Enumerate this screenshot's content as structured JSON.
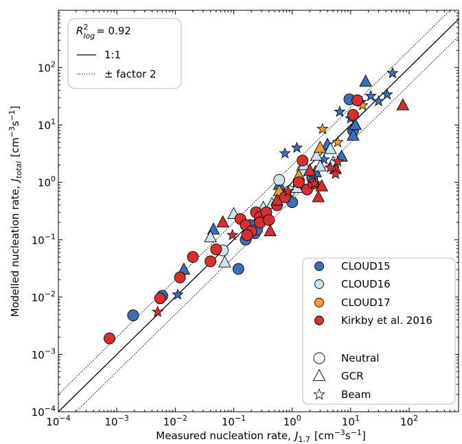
{
  "chart_data": {
    "type": "scatter",
    "xscale": "log",
    "yscale": "log",
    "xlim": [
      0.0001,
      700
    ],
    "ylim": [
      0.0001,
      1000
    ],
    "x_major_ticks": [
      {
        "value": 0.0001,
        "base": "10",
        "exp": "−4"
      },
      {
        "value": 0.001,
        "base": "10",
        "exp": "−3"
      },
      {
        "value": 0.01,
        "base": "10",
        "exp": "−2"
      },
      {
        "value": 0.1,
        "base": "10",
        "exp": "−1"
      },
      {
        "value": 1,
        "base": "10",
        "exp": "0"
      },
      {
        "value": 10,
        "base": "10",
        "exp": "1"
      },
      {
        "value": 100,
        "base": "10",
        "exp": "2"
      }
    ],
    "y_major_ticks": [
      {
        "value": 0.0001,
        "base": "10",
        "exp": "−4"
      },
      {
        "value": 0.001,
        "base": "10",
        "exp": "−3"
      },
      {
        "value": 0.01,
        "base": "10",
        "exp": "−2"
      },
      {
        "value": 0.1,
        "base": "10",
        "exp": "−1"
      },
      {
        "value": 1,
        "base": "10",
        "exp": "0"
      },
      {
        "value": 10,
        "base": "10",
        "exp": "1"
      },
      {
        "value": 100,
        "base": "10",
        "exp": "2"
      }
    ],
    "xlabel": {
      "main": "Measured nucleation rate,",
      "symbol": "J",
      "sub": "1.7",
      "unit_open": "[cm",
      "unit_exp1": "−3",
      "unit_mid": "s",
      "unit_exp2": "−1",
      "unit_close": "]"
    },
    "ylabel": {
      "main": "Modelled nucleation rate,",
      "symbol": "J",
      "sub": "total",
      "unit_open": "[cm",
      "unit_exp1": "−3",
      "unit_mid": "s",
      "unit_exp2": "−1",
      "unit_close": "]"
    },
    "annotation": {
      "symbol": "R",
      "sup": "2",
      "sub": "log",
      "value": "= 0.92"
    },
    "lines": [
      {
        "label": "1:1",
        "style": "solid",
        "factor": 1
      },
      {
        "label": "± factor 2",
        "style": "dotted",
        "factor": 2
      },
      {
        "label": "",
        "style": "dotted",
        "factor": 0.5
      }
    ],
    "line_legend_position": "top-left",
    "marker_legend_position": "bottom-right",
    "series": [
      {
        "name": "CLOUD15",
        "color": "#3b6fb6"
      },
      {
        "name": "CLOUD16",
        "color": "#c9e3ef"
      },
      {
        "name": "CLOUD17",
        "color": "#f39c2b"
      },
      {
        "name": "Kirkby et al. 2016",
        "color": "#d62f2f"
      }
    ],
    "markers": [
      {
        "name": "Neutral",
        "shape": "circle"
      },
      {
        "name": "GCR",
        "shape": "triangle"
      },
      {
        "name": "Beam",
        "shape": "star"
      }
    ],
    "points": [
      {
        "s": 0,
        "m": "circle",
        "x": 0.0019,
        "y": 0.0048
      },
      {
        "s": 0,
        "m": "circle",
        "x": 0.006,
        "y": 0.0105
      },
      {
        "s": 0,
        "m": "circle",
        "x": 0.12,
        "y": 0.031
      },
      {
        "s": 0,
        "m": "circle",
        "x": 0.19,
        "y": 0.18
      },
      {
        "s": 0,
        "m": "circle",
        "x": 0.16,
        "y": 0.1
      },
      {
        "s": 0,
        "m": "circle",
        "x": 0.23,
        "y": 0.13
      },
      {
        "s": 0,
        "m": "circle",
        "x": 0.25,
        "y": 0.15
      },
      {
        "s": 0,
        "m": "circle",
        "x": 0.8,
        "y": 0.55
      },
      {
        "s": 0,
        "m": "circle",
        "x": 1.0,
        "y": 0.45
      },
      {
        "s": 0,
        "m": "circle",
        "x": 1.3,
        "y": 0.9
      },
      {
        "s": 0,
        "m": "circle",
        "x": 2.2,
        "y": 1.2
      },
      {
        "s": 0,
        "m": "circle",
        "x": 9.5,
        "y": 28
      },
      {
        "s": 0,
        "m": "circle",
        "x": 11,
        "y": 8
      },
      {
        "s": 0,
        "m": "triangle",
        "x": 0.014,
        "y": 0.03
      },
      {
        "s": 0,
        "m": "triangle",
        "x": 0.045,
        "y": 0.15
      },
      {
        "s": 0,
        "m": "triangle",
        "x": 0.6,
        "y": 0.9
      },
      {
        "s": 0,
        "m": "triangle",
        "x": 2.5,
        "y": 1.5
      },
      {
        "s": 0,
        "m": "triangle",
        "x": 4.0,
        "y": 4.5
      },
      {
        "s": 0,
        "m": "triangle",
        "x": 7,
        "y": 2.8
      },
      {
        "s": 0,
        "m": "triangle",
        "x": 11,
        "y": 6.5
      },
      {
        "s": 0,
        "m": "triangle",
        "x": 12,
        "y": 10
      },
      {
        "s": 0,
        "m": "triangle",
        "x": 18,
        "y": 57
      },
      {
        "s": 0,
        "m": "star",
        "x": 0.011,
        "y": 0.011
      },
      {
        "s": 0,
        "m": "star",
        "x": 1.2,
        "y": 4.0
      },
      {
        "s": 0,
        "m": "star",
        "x": 0.75,
        "y": 3.2
      },
      {
        "s": 0,
        "m": "star",
        "x": 3.5,
        "y": 2.5
      },
      {
        "s": 0,
        "m": "star",
        "x": 6.5,
        "y": 17
      },
      {
        "s": 0,
        "m": "star",
        "x": 10,
        "y": 13
      },
      {
        "s": 0,
        "m": "star",
        "x": 22,
        "y": 32
      },
      {
        "s": 0,
        "m": "star",
        "x": 30,
        "y": 26
      },
      {
        "s": 0,
        "m": "star",
        "x": 42,
        "y": 34
      },
      {
        "s": 0,
        "m": "star",
        "x": 52,
        "y": 80
      },
      {
        "s": 0,
        "m": "star",
        "x": 15,
        "y": 25
      },
      {
        "s": 1,
        "m": "circle",
        "x": 0.065,
        "y": 0.065
      },
      {
        "s": 1,
        "m": "circle",
        "x": 0.6,
        "y": 1.1
      },
      {
        "s": 1,
        "m": "circle",
        "x": 1.5,
        "y": 1.6
      },
      {
        "s": 1,
        "m": "circle",
        "x": 0.9,
        "y": 0.7
      },
      {
        "s": 1,
        "m": "triangle",
        "x": 0.04,
        "y": 0.11
      },
      {
        "s": 1,
        "m": "triangle",
        "x": 0.07,
        "y": 0.04
      },
      {
        "s": 1,
        "m": "triangle",
        "x": 0.1,
        "y": 0.28
      },
      {
        "s": 1,
        "m": "triangle",
        "x": 0.32,
        "y": 0.36
      },
      {
        "s": 1,
        "m": "triangle",
        "x": 0.45,
        "y": 0.42
      },
      {
        "s": 1,
        "m": "triangle",
        "x": 0.7,
        "y": 0.55
      },
      {
        "s": 1,
        "m": "triangle",
        "x": 1.6,
        "y": 2.0
      },
      {
        "s": 1,
        "m": "triangle",
        "x": 2.6,
        "y": 2.9
      },
      {
        "s": 1,
        "m": "triangle",
        "x": 3.0,
        "y": 1.9
      },
      {
        "s": 1,
        "m": "triangle",
        "x": 5,
        "y": 2.2
      },
      {
        "s": 1,
        "m": "triangle",
        "x": 4.5,
        "y": 3.8
      },
      {
        "s": 1,
        "m": "triangle",
        "x": 1.2,
        "y": 0.8
      },
      {
        "s": 2,
        "m": "triangle",
        "x": 3.0,
        "y": 4.0
      },
      {
        "s": 2,
        "m": "triangle",
        "x": 0.6,
        "y": 0.7
      },
      {
        "s": 2,
        "m": "triangle",
        "x": 1.3,
        "y": 1.3
      },
      {
        "s": 2,
        "m": "star",
        "x": 3.3,
        "y": 8.5
      },
      {
        "s": 2,
        "m": "star",
        "x": 6,
        "y": 5
      },
      {
        "s": 2,
        "m": "star",
        "x": 16,
        "y": 22
      },
      {
        "s": 3,
        "m": "circle",
        "x": 0.00075,
        "y": 0.0019
      },
      {
        "s": 3,
        "m": "circle",
        "x": 0.0055,
        "y": 0.0095
      },
      {
        "s": 3,
        "m": "circle",
        "x": 0.012,
        "y": 0.022
      },
      {
        "s": 3,
        "m": "circle",
        "x": 0.02,
        "y": 0.05
      },
      {
        "s": 3,
        "m": "circle",
        "x": 0.04,
        "y": 0.042
      },
      {
        "s": 3,
        "m": "circle",
        "x": 0.05,
        "y": 0.068
      },
      {
        "s": 3,
        "m": "circle",
        "x": 0.13,
        "y": 0.23
      },
      {
        "s": 3,
        "m": "circle",
        "x": 0.16,
        "y": 0.18
      },
      {
        "s": 3,
        "m": "circle",
        "x": 0.2,
        "y": 0.14
      },
      {
        "s": 3,
        "m": "circle",
        "x": 0.17,
        "y": 0.12
      },
      {
        "s": 3,
        "m": "circle",
        "x": 0.24,
        "y": 0.3
      },
      {
        "s": 3,
        "m": "circle",
        "x": 0.28,
        "y": 0.25
      },
      {
        "s": 3,
        "m": "circle",
        "x": 0.28,
        "y": 0.2
      },
      {
        "s": 3,
        "m": "circle",
        "x": 0.36,
        "y": 0.3
      },
      {
        "s": 3,
        "m": "circle",
        "x": 0.4,
        "y": 0.22
      },
      {
        "s": 3,
        "m": "circle",
        "x": 0.55,
        "y": 0.4
      },
      {
        "s": 3,
        "m": "circle",
        "x": 0.75,
        "y": 0.55
      },
      {
        "s": 3,
        "m": "circle",
        "x": 1.3,
        "y": 1.0
      },
      {
        "s": 3,
        "m": "circle",
        "x": 1.5,
        "y": 2.4
      },
      {
        "s": 3,
        "m": "circle",
        "x": 1.8,
        "y": 0.75
      },
      {
        "s": 3,
        "m": "circle",
        "x": 2.3,
        "y": 0.95
      },
      {
        "s": 3,
        "m": "circle",
        "x": 11,
        "y": 15
      },
      {
        "s": 3,
        "m": "circle",
        "x": 13,
        "y": 27
      },
      {
        "s": 3,
        "m": "triangle",
        "x": 0.065,
        "y": 0.2
      },
      {
        "s": 3,
        "m": "triangle",
        "x": 0.42,
        "y": 0.14
      },
      {
        "s": 3,
        "m": "triangle",
        "x": 0.55,
        "y": 0.48
      },
      {
        "s": 3,
        "m": "triangle",
        "x": 2.0,
        "y": 1.6
      },
      {
        "s": 3,
        "m": "triangle",
        "x": 3.2,
        "y": 0.85
      },
      {
        "s": 3,
        "m": "triangle",
        "x": 2.8,
        "y": 0.55
      },
      {
        "s": 3,
        "m": "triangle",
        "x": 5.5,
        "y": 1.7
      },
      {
        "s": 3,
        "m": "triangle",
        "x": 78,
        "y": 22
      },
      {
        "s": 3,
        "m": "star",
        "x": 0.005,
        "y": 0.0055
      },
      {
        "s": 3,
        "m": "star",
        "x": 0.095,
        "y": 0.12
      },
      {
        "s": 3,
        "m": "star",
        "x": 0.85,
        "y": 0.7
      },
      {
        "s": 3,
        "m": "star",
        "x": 2.4,
        "y": 0.95
      },
      {
        "s": 3,
        "m": "star",
        "x": 4.5,
        "y": 1.8
      },
      {
        "s": 3,
        "m": "star",
        "x": 6,
        "y": 2.3
      },
      {
        "s": 3,
        "m": "star",
        "x": 5.5,
        "y": 1.4
      }
    ]
  }
}
